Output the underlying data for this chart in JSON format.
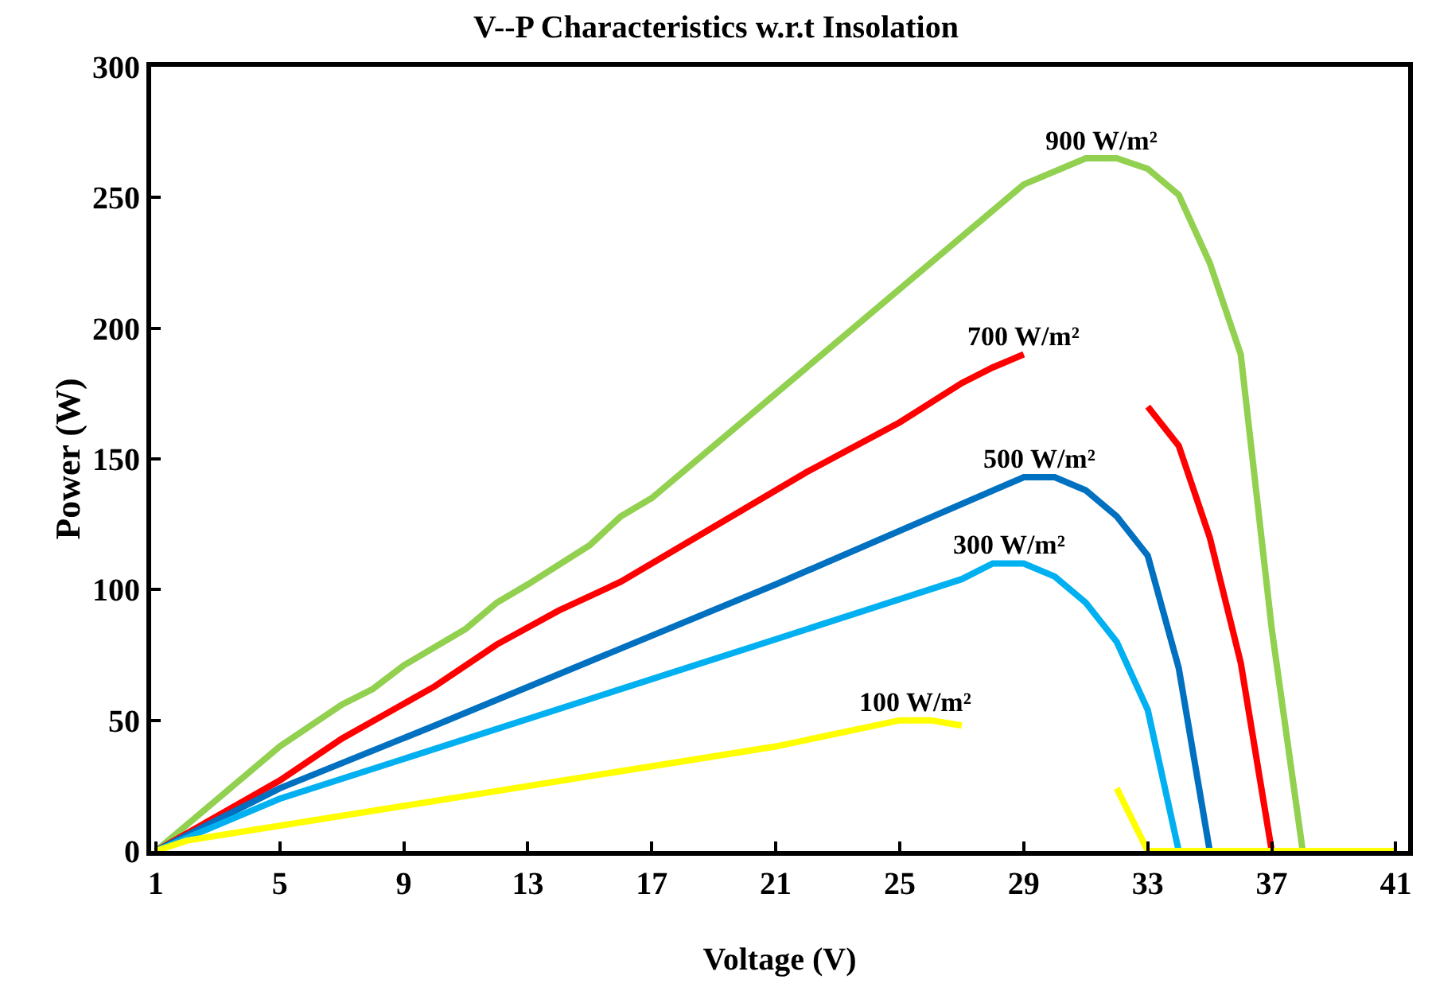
{
  "chart_data": {
    "type": "line",
    "title": "V--P Characteristics w.r.t Insolation",
    "xlabel": "Voltage (V)",
    "ylabel": "Power (W)",
    "xlim": [
      0.85,
      41.4
    ],
    "xticks": [
      1,
      5,
      9,
      13,
      17,
      21,
      25,
      29,
      33,
      37,
      41
    ],
    "ylim": [
      0,
      300
    ],
    "yticks": [
      0,
      50,
      100,
      150,
      200,
      250,
      300
    ],
    "marker": "none",
    "line_style": "solid",
    "series": [
      {
        "name": "900 W/m²",
        "color": "#92d050",
        "x": [
          1,
          5,
          7,
          8,
          9,
          11,
          12,
          13,
          15,
          16,
          17,
          21,
          29,
          31,
          32,
          33,
          34,
          35,
          36,
          37,
          38,
          41
        ],
        "values": [
          0,
          40,
          56,
          62,
          71,
          85,
          95,
          102,
          117,
          128,
          135,
          175,
          255,
          265,
          265,
          261,
          251,
          225,
          190,
          85,
          0,
          0
        ]
      },
      {
        "name": "700 W/m²",
        "color": "#ff0000",
        "x": [
          1,
          5,
          7,
          10,
          12,
          14,
          16,
          21,
          22,
          25,
          27,
          28,
          29,
          30,
          31,
          32,
          33,
          34,
          35,
          36,
          37,
          41
        ],
        "values": [
          0,
          27,
          43,
          63,
          79,
          92,
          103,
          138,
          145,
          164,
          179,
          185,
          190,
          null,
          null,
          null,
          170,
          155,
          120,
          72,
          0,
          0
        ]
      },
      {
        "name": "500 W/m²",
        "color": "#0070c0",
        "x": [
          1,
          5,
          10,
          21,
          29,
          30,
          31,
          32,
          33,
          34,
          35,
          41
        ],
        "values": [
          0,
          24,
          48,
          102,
          143,
          143,
          138,
          128,
          113,
          70,
          0,
          0
        ]
      },
      {
        "name": "300 W/m²",
        "color": "#00b0f0",
        "x": [
          1,
          5,
          21,
          27,
          28,
          29,
          30,
          31,
          32,
          33,
          34,
          41
        ],
        "values": [
          0,
          20,
          81,
          104,
          110,
          110,
          105,
          95,
          80,
          54,
          0,
          0
        ]
      },
      {
        "name": "100 W/m²",
        "color": "#ffff00",
        "x": [
          1,
          2,
          21,
          25,
          26,
          27,
          28,
          29,
          30,
          31,
          32,
          33,
          41
        ],
        "values": [
          0,
          4,
          40,
          50,
          50,
          48,
          null,
          null,
          null,
          null,
          24,
          0,
          0
        ]
      }
    ]
  }
}
